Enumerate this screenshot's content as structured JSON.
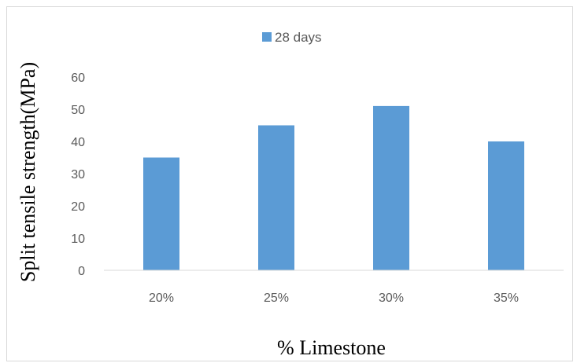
{
  "chart_data": {
    "type": "bar",
    "categories": [
      "20%",
      "25%",
      "30%",
      "35%"
    ],
    "series": [
      {
        "name": "28 days",
        "values": [
          35,
          45,
          51,
          40
        ],
        "color": "#5b9bd5"
      }
    ],
    "title": "",
    "xlabel": "% Limestone",
    "ylabel": "Split tensile strength(MPa)",
    "ylim": [
      0,
      60
    ],
    "yticks": [
      "0",
      "10",
      "20",
      "30",
      "40",
      "50",
      "60"
    ],
    "grid": false,
    "legend": {
      "position": "top"
    },
    "axis_color": "#d9d9d9"
  }
}
